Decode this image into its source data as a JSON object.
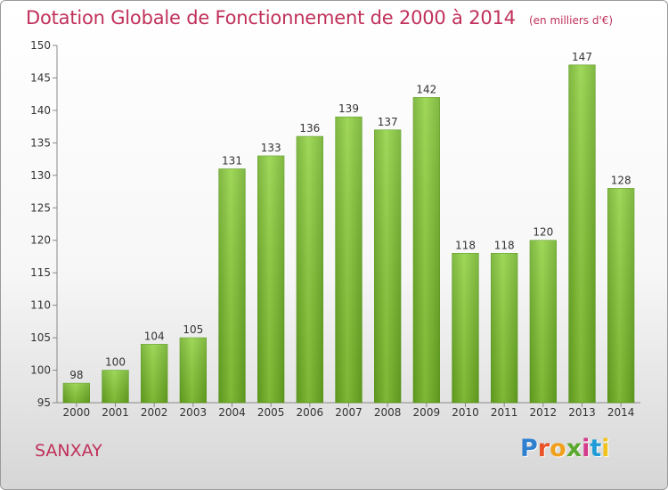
{
  "title": "Dotation Globale de Fonctionnement de 2000 à 2014",
  "unit_note": "(en milliers d'€)",
  "commune": "SANXAY",
  "logo": {
    "text": "Proxiti",
    "colors": [
      "#2f7fd0",
      "#e8532a",
      "#f1a01c",
      "#5aa82e",
      "#d43b8a",
      "#1f9bd7",
      "#f1c21c"
    ]
  },
  "chart_data": {
    "type": "bar",
    "title": "Dotation Globale de Fonctionnement de 2000 à 2014",
    "subtitle": "(en milliers d'€)",
    "xlabel": "",
    "ylabel": "",
    "categories": [
      "2000",
      "2001",
      "2002",
      "2003",
      "2004",
      "2005",
      "2006",
      "2007",
      "2008",
      "2009",
      "2010",
      "2011",
      "2012",
      "2013",
      "2014"
    ],
    "values": [
      98,
      100,
      104,
      105,
      131,
      133,
      136,
      139,
      137,
      142,
      118,
      118,
      120,
      147,
      128
    ],
    "ylim": [
      95,
      150
    ],
    "yticks": [
      95,
      100,
      105,
      110,
      115,
      120,
      125,
      130,
      135,
      140,
      145,
      150
    ],
    "grid": false,
    "bar_color": "#7cc031",
    "bar_color_dark": "#5c9a1e"
  }
}
